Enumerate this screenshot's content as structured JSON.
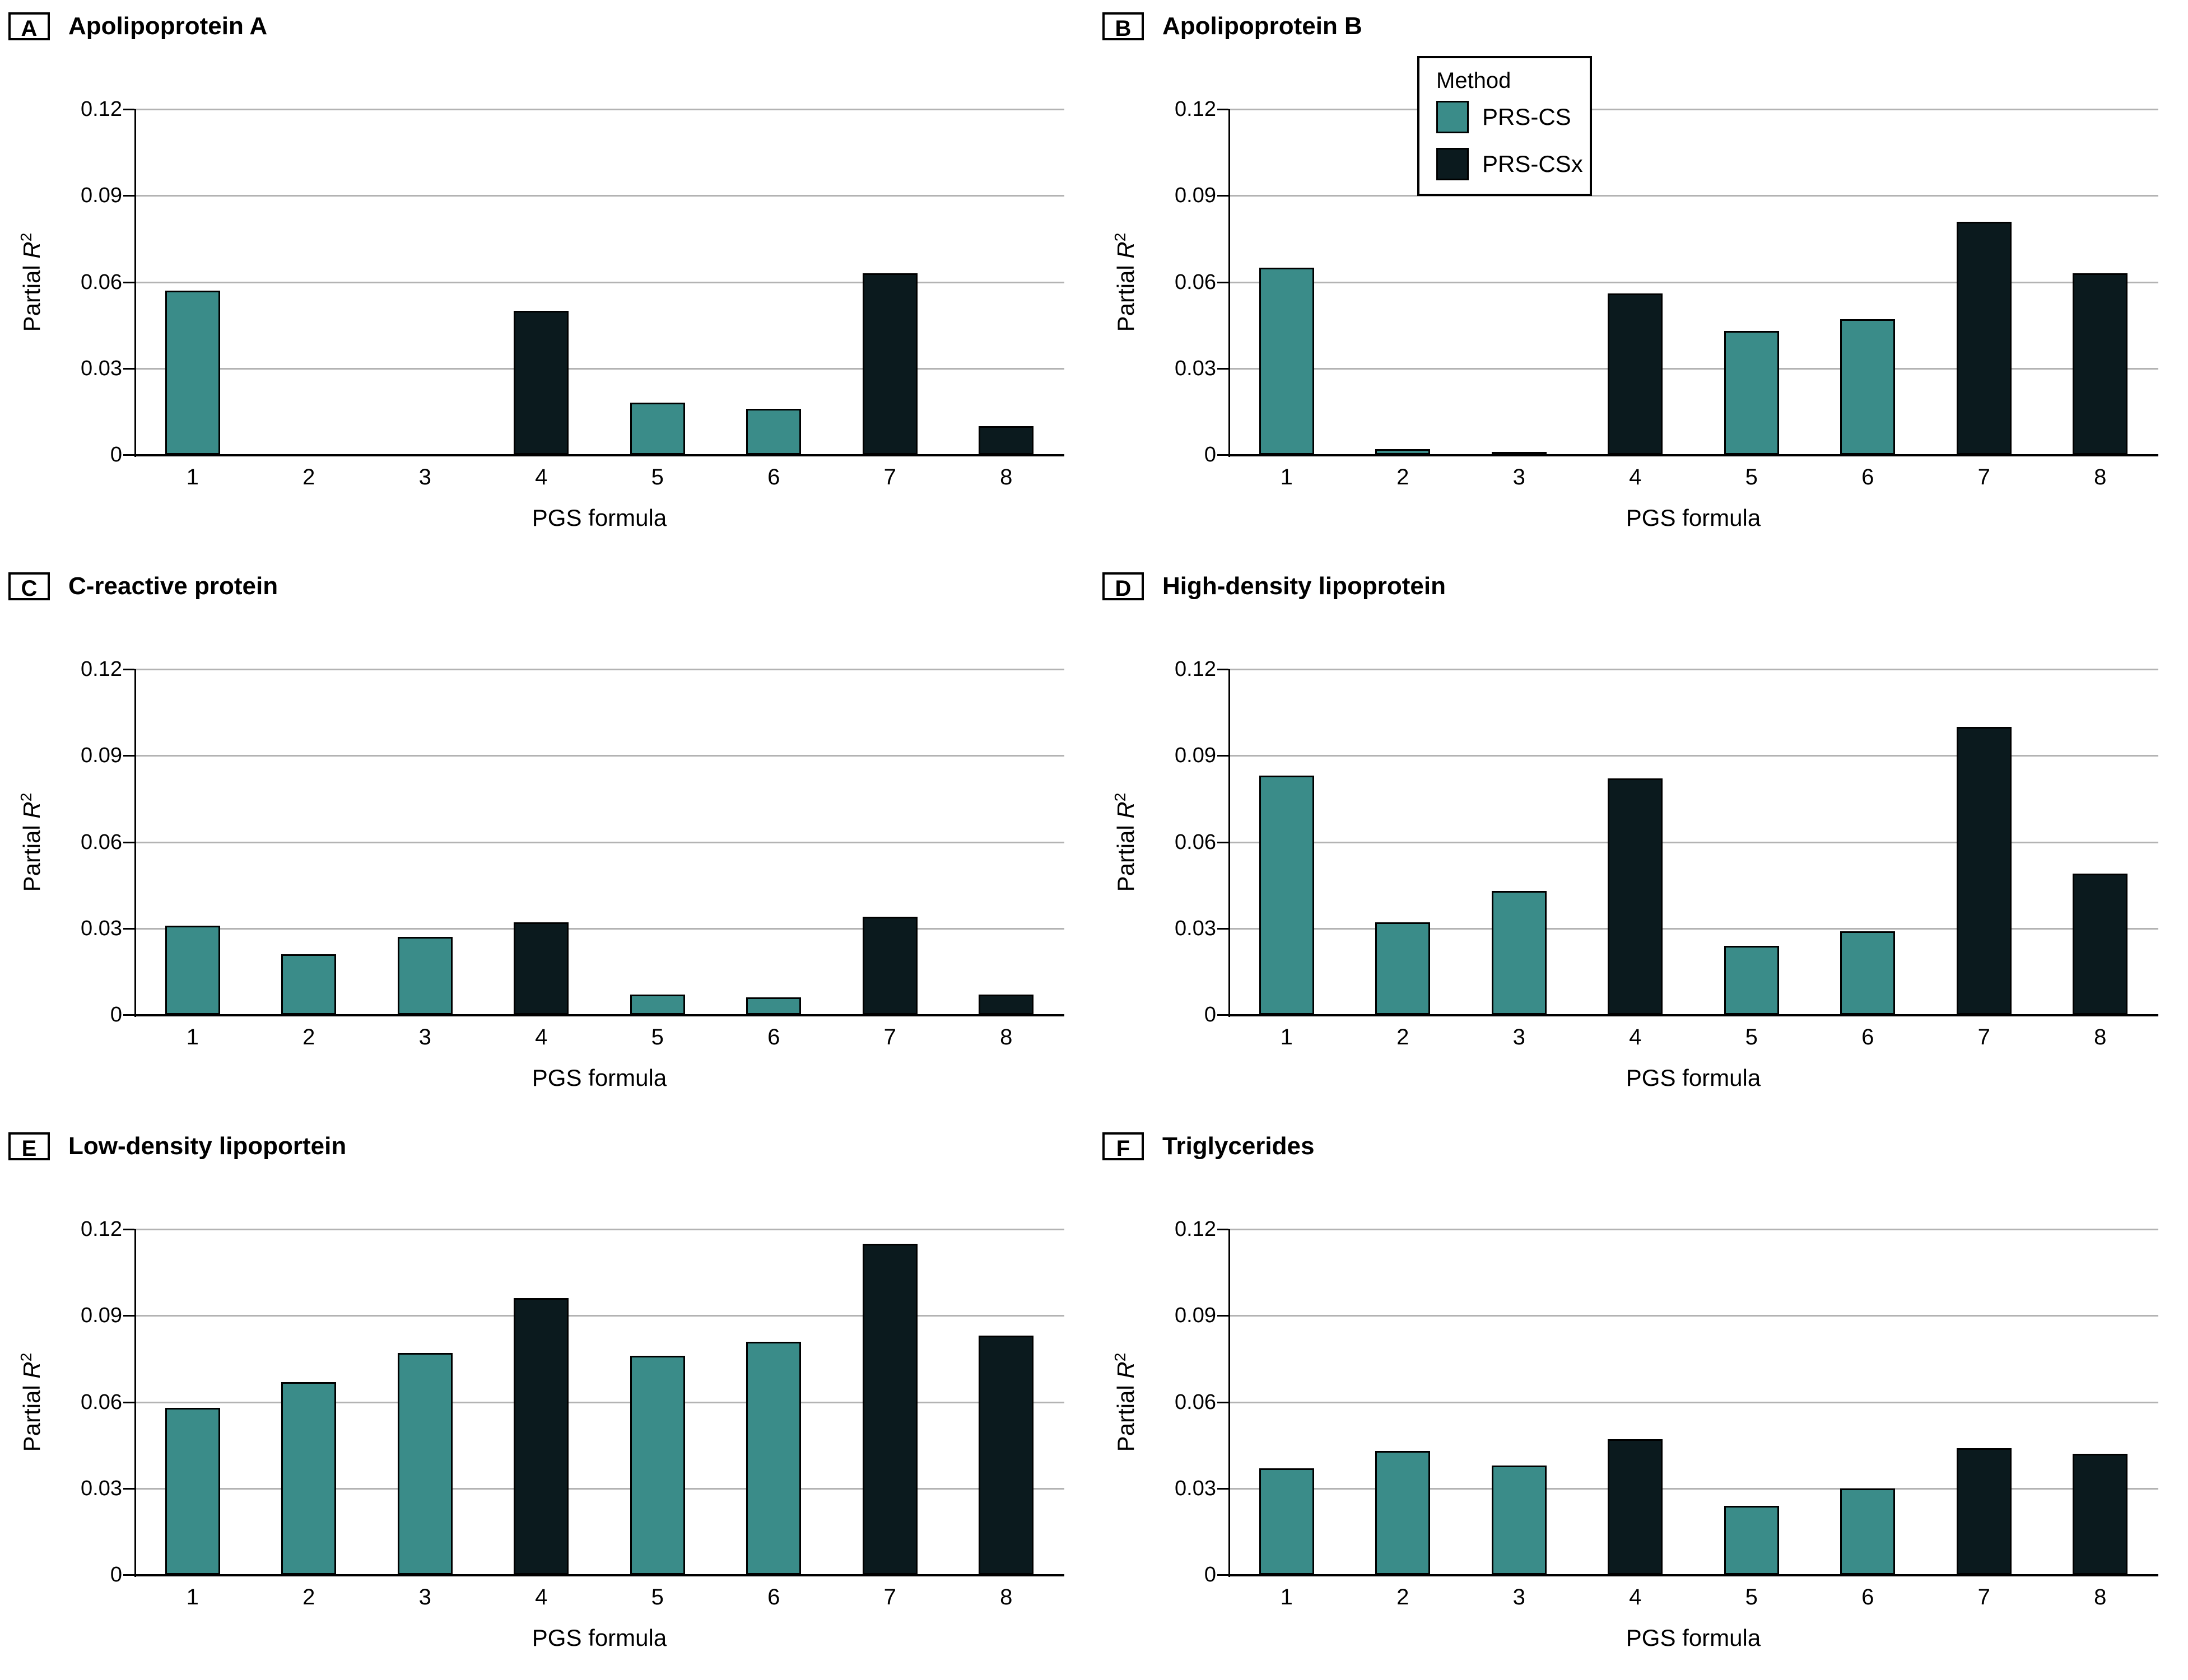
{
  "figure": {
    "background": "#FFFFFF",
    "xlabel": "PGS formula",
    "ylabel": {
      "prefix": "Partial ",
      "variable": "R",
      "superscript": "2"
    },
    "yticks": [
      "0",
      "0.03",
      "0.06",
      "0.09",
      "0.12"
    ],
    "categories": [
      "1",
      "2",
      "3",
      "4",
      "5",
      "6",
      "7",
      "8"
    ],
    "colors": {
      "PRS-CS": "#3A8C89",
      "PRS-CSx": "#0B1A1E",
      "grid": "#B3B3B3",
      "axis": "#000000"
    },
    "legend": {
      "title": "Method",
      "items": [
        {
          "label": "PRS-CS",
          "color_key": "PRS-CS"
        },
        {
          "label": "PRS-CSx",
          "color_key": "PRS-CSx"
        }
      ]
    }
  },
  "chart_data": [
    {
      "type": "bar",
      "panel_label": "A",
      "title": "Apolipoprotein A",
      "xlabel": "PGS formula",
      "ylabel": "Partial R2",
      "ylim": [
        0,
        0.12
      ],
      "grid": true,
      "categories": [
        "1",
        "2",
        "3",
        "4",
        "5",
        "6",
        "7",
        "8"
      ],
      "values": [
        0.057,
        0,
        0,
        0.05,
        0.018,
        0.016,
        0.063,
        0.01
      ],
      "methods": [
        "PRS-CS",
        "PRS-CS",
        "PRS-CS",
        "PRS-CSx",
        "PRS-CS",
        "PRS-CS",
        "PRS-CSx",
        "PRS-CSx"
      ]
    },
    {
      "type": "bar",
      "panel_label": "B",
      "title": "Apolipoprotein B",
      "xlabel": "PGS formula",
      "ylabel": "Partial R2",
      "ylim": [
        0,
        0.12
      ],
      "grid": true,
      "legend_position": "upper-left",
      "categories": [
        "1",
        "2",
        "3",
        "4",
        "5",
        "6",
        "7",
        "8"
      ],
      "values": [
        0.065,
        0.002,
        0.001,
        0.056,
        0.043,
        0.047,
        0.081,
        0.063
      ],
      "methods": [
        "PRS-CS",
        "PRS-CS",
        "PRS-CS",
        "PRS-CSx",
        "PRS-CS",
        "PRS-CS",
        "PRS-CSx",
        "PRS-CSx"
      ]
    },
    {
      "type": "bar",
      "panel_label": "C",
      "title": "C-reactive protein",
      "xlabel": "PGS formula",
      "ylabel": "Partial R2",
      "ylim": [
        0,
        0.12
      ],
      "grid": true,
      "categories": [
        "1",
        "2",
        "3",
        "4",
        "5",
        "6",
        "7",
        "8"
      ],
      "values": [
        0.031,
        0.021,
        0.027,
        0.032,
        0.007,
        0.006,
        0.034,
        0.007
      ],
      "methods": [
        "PRS-CS",
        "PRS-CS",
        "PRS-CS",
        "PRS-CSx",
        "PRS-CS",
        "PRS-CS",
        "PRS-CSx",
        "PRS-CSx"
      ]
    },
    {
      "type": "bar",
      "panel_label": "D",
      "title": "High-density lipoprotein",
      "xlabel": "PGS formula",
      "ylabel": "Partial R2",
      "ylim": [
        0,
        0.12
      ],
      "grid": true,
      "categories": [
        "1",
        "2",
        "3",
        "4",
        "5",
        "6",
        "7",
        "8"
      ],
      "values": [
        0.083,
        0.032,
        0.043,
        0.082,
        0.024,
        0.029,
        0.1,
        0.049
      ],
      "methods": [
        "PRS-CS",
        "PRS-CS",
        "PRS-CS",
        "PRS-CSx",
        "PRS-CS",
        "PRS-CS",
        "PRS-CSx",
        "PRS-CSx"
      ]
    },
    {
      "type": "bar",
      "panel_label": "E",
      "title": "Low-density lipoportein",
      "xlabel": "PGS formula",
      "ylabel": "Partial R2",
      "ylim": [
        0,
        0.12
      ],
      "grid": true,
      "categories": [
        "1",
        "2",
        "3",
        "4",
        "5",
        "6",
        "7",
        "8"
      ],
      "values": [
        0.058,
        0.067,
        0.077,
        0.096,
        0.076,
        0.081,
        0.115,
        0.083
      ],
      "methods": [
        "PRS-CS",
        "PRS-CS",
        "PRS-CS",
        "PRS-CSx",
        "PRS-CS",
        "PRS-CS",
        "PRS-CSx",
        "PRS-CSx"
      ]
    },
    {
      "type": "bar",
      "panel_label": "F",
      "title": "Triglycerides",
      "xlabel": "PGS formula",
      "ylabel": "Partial R2",
      "ylim": [
        0,
        0.12
      ],
      "grid": true,
      "categories": [
        "1",
        "2",
        "3",
        "4",
        "5",
        "6",
        "7",
        "8"
      ],
      "values": [
        0.037,
        0.043,
        0.038,
        0.047,
        0.024,
        0.03,
        0.044,
        0.042
      ],
      "methods": [
        "PRS-CS",
        "PRS-CS",
        "PRS-CS",
        "PRS-CSx",
        "PRS-CS",
        "PRS-CS",
        "PRS-CSx",
        "PRS-CSx"
      ]
    }
  ]
}
